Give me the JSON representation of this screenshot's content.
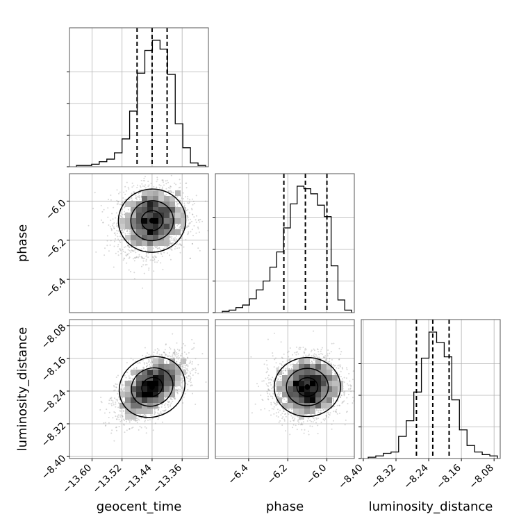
{
  "chart_data": {
    "type": "corner",
    "parameters": [
      "geocent_time",
      "phase",
      "luminosity_distance"
    ],
    "axis_labels": {
      "geocent_time": "geocent_time",
      "phase": "phase",
      "luminosity_distance": "luminosity_distance"
    },
    "ranges": {
      "geocent_time": [
        -13.66,
        -13.29
      ],
      "phase": [
        -6.57,
        -5.86
      ],
      "luminosity_distance": [
        -8.405,
        -8.065
      ]
    },
    "ticks": {
      "geocent_time": [
        "-13.60",
        "-13.52",
        "-13.44",
        "-13.36"
      ],
      "phase": [
        "-6.4",
        "-6.2",
        "-6.0"
      ],
      "luminosity_distance": [
        "-8.40",
        "-8.32",
        "-8.24",
        "-8.16",
        "-8.08"
      ]
    },
    "quantiles": {
      "geocent_time": [
        -13.48,
        -13.44,
        -13.4
      ],
      "phase": [
        -6.22,
        -6.11,
        -6.0
      ],
      "luminosity_distance": [
        -8.27,
        -8.23,
        -8.19
      ]
    },
    "histograms": {
      "geocent_time": [
        0.01,
        0.01,
        0.02,
        0.04,
        0.06,
        0.11,
        0.22,
        0.44,
        0.74,
        0.92,
        1.0,
        0.93,
        0.73,
        0.34,
        0.15,
        0.03,
        0.01
      ],
      "phase": [
        0.01,
        0.02,
        0.04,
        0.06,
        0.11,
        0.18,
        0.25,
        0.36,
        0.48,
        0.67,
        0.86,
        1.0,
        0.98,
        0.94,
        0.85,
        0.76,
        0.37,
        0.1,
        0.02
      ],
      "luminosity_distance": [
        0.01,
        0.02,
        0.04,
        0.05,
        0.17,
        0.29,
        0.51,
        0.77,
        0.97,
        0.89,
        0.78,
        0.45,
        0.22,
        0.1,
        0.05,
        0.03,
        0.02
      ]
    },
    "pairs": [
      {
        "x": "geocent_time",
        "y": "phase",
        "center": [
          -13.44,
          -6.1
        ],
        "sd": [
          0.045,
          0.085
        ],
        "corr": 0.12,
        "n": 2600
      },
      {
        "x": "geocent_time",
        "y": "luminosity_distance",
        "center": [
          -13.44,
          -8.23
        ],
        "sd": [
          0.045,
          0.038
        ],
        "corr": 0.55,
        "n": 2600
      },
      {
        "x": "phase",
        "y": "luminosity_distance",
        "center": [
          -6.1,
          -8.23
        ],
        "sd": [
          0.085,
          0.038
        ],
        "corr": 0.05,
        "n": 2600
      }
    ],
    "grid": true,
    "colors": {
      "line": "#000000",
      "points": "#8c8c8c",
      "grid": "#b0b0b0"
    }
  }
}
